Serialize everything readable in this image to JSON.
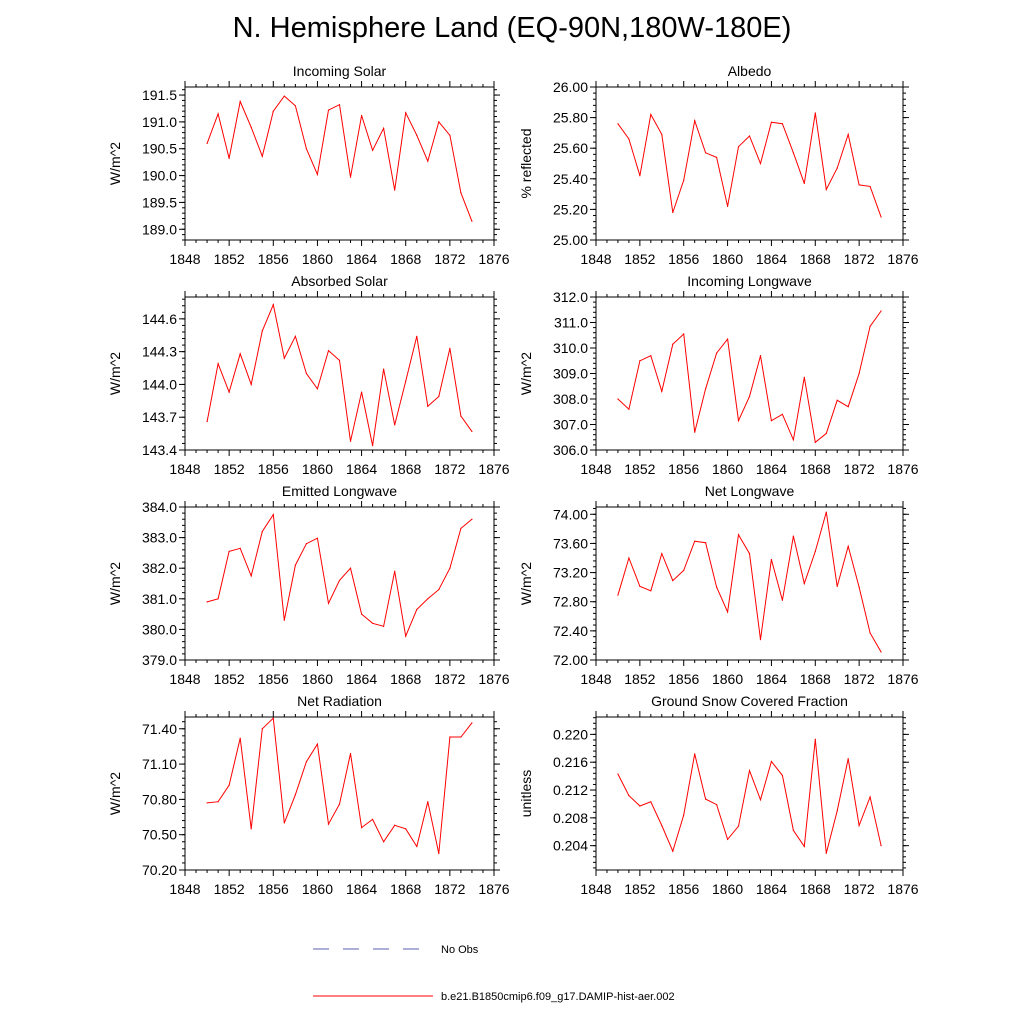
{
  "title": "N. Hemisphere Land (EQ-90N,180W-180E)",
  "legend": {
    "obs_label": "No Obs",
    "obs_color": "#5b5fb0",
    "model_label": "b.e21.B1850cmip6.f09_g17.DAMIP-hist-aer.002",
    "model_color": "#ff0000"
  },
  "chart_data": [
    {
      "type": "line",
      "title": "Incoming Solar",
      "ylabel": "W/m^2",
      "xlim": [
        1848,
        1876
      ],
      "xticks": [
        "1848",
        "1852",
        "1856",
        "1860",
        "1864",
        "1868",
        "1872",
        "1876"
      ],
      "ylim": [
        188.8,
        191.65
      ],
      "yticks": [
        "189.0",
        "189.5",
        "190.0",
        "190.5",
        "191.0",
        "191.5"
      ],
      "x": [
        1850,
        1851,
        1852,
        1853,
        1854,
        1855,
        1856,
        1857,
        1858,
        1859,
        1860,
        1861,
        1862,
        1863,
        1864,
        1865,
        1866,
        1867,
        1868,
        1869,
        1870,
        1871,
        1872,
        1873,
        1874
      ],
      "values": [
        190.6,
        191.15,
        190.32,
        191.38,
        190.9,
        190.36,
        191.2,
        191.48,
        191.3,
        190.5,
        190.02,
        191.22,
        191.32,
        189.97,
        191.12,
        190.47,
        190.88,
        189.73,
        191.17,
        190.75,
        190.27,
        191.0,
        190.75,
        189.68,
        189.15
      ]
    },
    {
      "type": "line",
      "title": "Albedo",
      "ylabel": "% reflected",
      "xlim": [
        1848,
        1876
      ],
      "xticks": [
        "1848",
        "1852",
        "1856",
        "1860",
        "1864",
        "1868",
        "1872",
        "1876"
      ],
      "ylim": [
        25.0,
        26.0
      ],
      "yticks": [
        "25.00",
        "25.20",
        "25.40",
        "25.60",
        "25.80",
        "26.00"
      ],
      "x": [
        1850,
        1851,
        1852,
        1853,
        1854,
        1855,
        1856,
        1857,
        1858,
        1859,
        1860,
        1861,
        1862,
        1863,
        1864,
        1865,
        1866,
        1867,
        1868,
        1869,
        1870,
        1871,
        1872,
        1873,
        1874
      ],
      "values": [
        25.76,
        25.66,
        25.42,
        25.82,
        25.69,
        25.18,
        25.39,
        25.78,
        25.57,
        25.54,
        25.22,
        25.61,
        25.68,
        25.5,
        25.77,
        25.76,
        25.57,
        25.37,
        25.83,
        25.33,
        25.47,
        25.69,
        25.36,
        25.35,
        25.15
      ]
    },
    {
      "type": "line",
      "title": "Absorbed Solar",
      "ylabel": "W/m^2",
      "xlim": [
        1848,
        1876
      ],
      "xticks": [
        "1848",
        "1852",
        "1856",
        "1860",
        "1864",
        "1868",
        "1872",
        "1876"
      ],
      "ylim": [
        143.4,
        144.8
      ],
      "yticks": [
        "143.4",
        "143.7",
        "144.0",
        "144.3",
        "144.6"
      ],
      "x": [
        1850,
        1851,
        1852,
        1853,
        1854,
        1855,
        1856,
        1857,
        1858,
        1859,
        1860,
        1861,
        1862,
        1863,
        1864,
        1865,
        1866,
        1867,
        1868,
        1869,
        1870,
        1871,
        1872,
        1873,
        1874
      ],
      "values": [
        143.66,
        144.19,
        143.93,
        144.28,
        144.0,
        144.49,
        144.73,
        144.24,
        144.44,
        144.1,
        143.96,
        144.31,
        144.22,
        143.48,
        143.93,
        143.44,
        144.14,
        143.63,
        144.03,
        144.44,
        143.8,
        143.89,
        144.33,
        143.71,
        143.57
      ]
    },
    {
      "type": "line",
      "title": "Incoming Longwave",
      "ylabel": "W/m^2",
      "xlim": [
        1848,
        1876
      ],
      "xticks": [
        "1848",
        "1852",
        "1856",
        "1860",
        "1864",
        "1868",
        "1872",
        "1876"
      ],
      "ylim": [
        306.0,
        312.0
      ],
      "yticks": [
        "306.0",
        "307.0",
        "308.0",
        "309.0",
        "310.0",
        "311.0",
        "312.0"
      ],
      "x": [
        1850,
        1851,
        1852,
        1853,
        1854,
        1855,
        1856,
        1857,
        1858,
        1859,
        1860,
        1861,
        1862,
        1863,
        1864,
        1865,
        1866,
        1867,
        1868,
        1869,
        1870,
        1871,
        1872,
        1873,
        1874
      ],
      "values": [
        308.0,
        307.6,
        309.5,
        309.7,
        308.3,
        310.15,
        310.55,
        306.7,
        308.4,
        309.8,
        310.35,
        307.15,
        308.1,
        309.7,
        307.15,
        307.4,
        306.4,
        308.85,
        306.3,
        306.65,
        307.95,
        307.7,
        309.0,
        310.85,
        311.45
      ]
    },
    {
      "type": "line",
      "title": "Emitted Longwave",
      "ylabel": "W/m^2",
      "xlim": [
        1848,
        1876
      ],
      "xticks": [
        "1848",
        "1852",
        "1856",
        "1860",
        "1864",
        "1868",
        "1872",
        "1876"
      ],
      "ylim": [
        379.0,
        384.0
      ],
      "yticks": [
        "379.0",
        "380.0",
        "381.0",
        "382.0",
        "383.0",
        "384.0"
      ],
      "x": [
        1850,
        1851,
        1852,
        1853,
        1854,
        1855,
        1856,
        1857,
        1858,
        1859,
        1860,
        1861,
        1862,
        1863,
        1864,
        1865,
        1866,
        1867,
        1868,
        1869,
        1870,
        1871,
        1872,
        1873,
        1874
      ],
      "values": [
        380.9,
        381.0,
        382.55,
        382.65,
        381.75,
        383.2,
        383.75,
        380.3,
        382.1,
        382.8,
        382.98,
        380.85,
        381.6,
        382.0,
        380.5,
        380.2,
        380.1,
        381.9,
        379.78,
        380.65,
        381.0,
        381.3,
        382.0,
        383.3,
        383.6
      ]
    },
    {
      "type": "line",
      "title": "Net Longwave",
      "ylabel": "W/m^2",
      "xlim": [
        1848,
        1876
      ],
      "xticks": [
        "1848",
        "1852",
        "1856",
        "1860",
        "1864",
        "1868",
        "1872",
        "1876"
      ],
      "ylim": [
        72.0,
        74.1
      ],
      "yticks": [
        "72.00",
        "72.40",
        "72.80",
        "73.20",
        "73.60",
        "74.00"
      ],
      "x": [
        1850,
        1851,
        1852,
        1853,
        1854,
        1855,
        1856,
        1857,
        1858,
        1859,
        1860,
        1861,
        1862,
        1863,
        1864,
        1865,
        1866,
        1867,
        1868,
        1869,
        1870,
        1871,
        1872,
        1873,
        1874
      ],
      "values": [
        72.89,
        73.4,
        73.01,
        72.95,
        73.46,
        73.09,
        73.23,
        73.63,
        73.61,
        73.0,
        72.66,
        73.72,
        73.46,
        72.28,
        73.38,
        72.82,
        73.7,
        73.05,
        73.49,
        74.03,
        73.01,
        73.56,
        73.0,
        72.37,
        72.11
      ]
    },
    {
      "type": "line",
      "title": "Net Radiation",
      "ylabel": "W/m^2",
      "xlim": [
        1848,
        1876
      ],
      "xticks": [
        "1848",
        "1852",
        "1856",
        "1860",
        "1864",
        "1868",
        "1872",
        "1876"
      ],
      "ylim": [
        70.2,
        71.5
      ],
      "yticks": [
        "70.20",
        "70.50",
        "70.80",
        "71.10",
        "71.40"
      ],
      "x": [
        1850,
        1851,
        1852,
        1853,
        1854,
        1855,
        1856,
        1857,
        1858,
        1859,
        1860,
        1861,
        1862,
        1863,
        1864,
        1865,
        1866,
        1867,
        1868,
        1869,
        1870,
        1871,
        1872,
        1873,
        1874
      ],
      "values": [
        70.77,
        70.78,
        70.92,
        71.32,
        70.55,
        71.4,
        71.49,
        70.6,
        70.84,
        71.12,
        71.27,
        70.59,
        70.76,
        71.19,
        70.56,
        70.63,
        70.44,
        70.58,
        70.55,
        70.4,
        70.78,
        70.34,
        71.33,
        71.33,
        71.45
      ]
    },
    {
      "type": "line",
      "title": "Ground Snow Covered Fraction",
      "ylabel": "unitless",
      "xlim": [
        1848,
        1876
      ],
      "xticks": [
        "1848",
        "1852",
        "1856",
        "1860",
        "1864",
        "1868",
        "1872",
        "1876"
      ],
      "ylim": [
        0.2005,
        0.2225
      ],
      "yticks": [
        "0.204",
        "0.208",
        "0.212",
        "0.216",
        "0.220"
      ],
      "x": [
        1850,
        1851,
        1852,
        1853,
        1854,
        1855,
        1856,
        1857,
        1858,
        1859,
        1860,
        1861,
        1862,
        1863,
        1864,
        1865,
        1866,
        1867,
        1868,
        1869,
        1870,
        1871,
        1872,
        1873,
        1874
      ],
      "values": [
        0.2143,
        0.2112,
        0.2097,
        0.2103,
        0.2069,
        0.2032,
        0.2084,
        0.2172,
        0.2107,
        0.2099,
        0.2049,
        0.2068,
        0.2148,
        0.2106,
        0.2161,
        0.2141,
        0.2062,
        0.2039,
        0.2193,
        0.2029,
        0.209,
        0.2165,
        0.2069,
        0.211,
        0.204
      ]
    }
  ]
}
